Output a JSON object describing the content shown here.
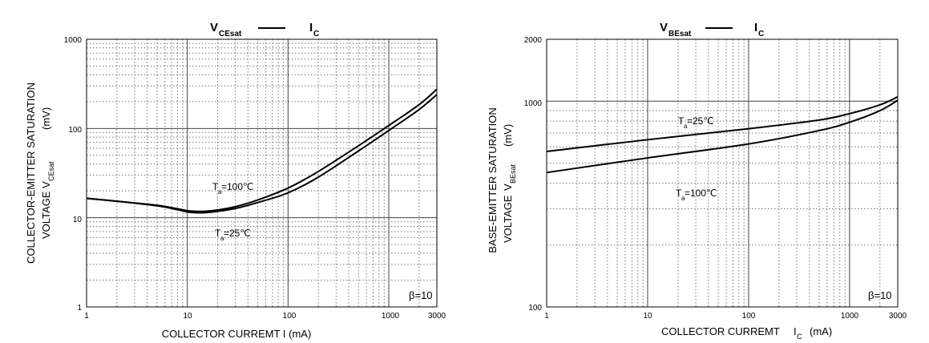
{
  "chart_data": [
    {
      "type": "line",
      "title": {
        "main": "V",
        "main_sub": "CEsat",
        "vs": "I",
        "vs_sub": "C"
      },
      "ylabel_line1": "COLLECTOR-EMITTER SATURATION",
      "ylabel_line2_prefix": "VOLTAGE",
      "ylabel_line2_symbol": "V",
      "ylabel_line2_sub": "CEsat",
      "ylabel_line2_unit": "(mV)",
      "xlabel": "COLLECTOR CURREMT I (mA)",
      "xscale": "log",
      "yscale": "log",
      "xlim": [
        1,
        3000
      ],
      "ylim": [
        1,
        1000
      ],
      "x_ticks": [
        1,
        10,
        100,
        1000,
        3000
      ],
      "x_tick_labels": [
        "1",
        "10",
        "100",
        "1000",
        "3000"
      ],
      "y_ticks": [
        1,
        10,
        100,
        1000
      ],
      "y_tick_labels": [
        "1",
        "10",
        "100",
        "1000"
      ],
      "grid": "dotted minor, solid decades",
      "annotation": "β=10",
      "series": [
        {
          "name": "Ta=100℃",
          "name_main": "T",
          "name_sub": "a",
          "name_rest": "=100℃",
          "x": [
            1,
            2,
            5,
            8,
            10,
            12,
            15,
            20,
            30,
            50,
            100,
            200,
            500,
            1000,
            2000,
            3000
          ],
          "y": [
            16.5,
            15.3,
            13.8,
            12.6,
            12.0,
            11.8,
            11.8,
            12.2,
            13.3,
            15.8,
            21.5,
            33.0,
            64.0,
            108.0,
            185.0,
            275.0
          ]
        },
        {
          "name": "Ta=25℃",
          "name_main": "T",
          "name_sub": "a",
          "name_rest": "=25℃",
          "x": [
            1,
            2,
            5,
            8,
            10,
            12,
            15,
            20,
            30,
            50,
            100,
            200,
            500,
            1000,
            2000,
            3000
          ],
          "y": [
            16.5,
            15.3,
            13.6,
            12.3,
            11.6,
            11.4,
            11.4,
            11.8,
            12.7,
            14.8,
            19.0,
            28.5,
            56.0,
            95.0,
            163.0,
            240.0
          ]
        }
      ]
    },
    {
      "type": "line",
      "title": {
        "main": "V",
        "main_sub": "BEsat",
        "vs": "I",
        "vs_sub": "C"
      },
      "ylabel_line1": "BASE-EMITTER SATURATION",
      "ylabel_line2_prefix": "VOLTAGE",
      "ylabel_line2_symbol": "V",
      "ylabel_line2_sub": "BEsat",
      "ylabel_line2_unit": "(mV)",
      "xlabel": "COLLECTOR CURREMT",
      "xlabel_symbol": "I",
      "xlabel_sub": "C",
      "xlabel_unit": "(mA)",
      "xscale": "log",
      "yscale": "log",
      "xlim": [
        1,
        3000
      ],
      "ylim": [
        100,
        2000
      ],
      "x_ticks": [
        1,
        10,
        100,
        1000,
        3000
      ],
      "x_tick_labels": [
        "1",
        "10",
        "100",
        "1000",
        "3000"
      ],
      "y_ticks": [
        100,
        1000,
        2000
      ],
      "y_tick_labels": [
        "100",
        "1000",
        "2000"
      ],
      "grid": "dotted minor, solid decades",
      "annotation": "β=10",
      "series": [
        {
          "name": "Ta=25℃",
          "name_main": "T",
          "name_sub": "a",
          "name_rest": "=25℃",
          "x": [
            1,
            10,
            100,
            500,
            1000,
            2000,
            3000
          ],
          "y": [
            570,
            650,
            735,
            810,
            870,
            960,
            1050
          ]
        },
        {
          "name": "Ta=100℃",
          "name_main": "T",
          "name_sub": "a",
          "name_rest": "=100℃",
          "x": [
            1,
            10,
            100,
            500,
            1000,
            2000,
            3000
          ],
          "y": [
            450,
            530,
            620,
            720,
            790,
            900,
            1010
          ]
        }
      ]
    }
  ]
}
